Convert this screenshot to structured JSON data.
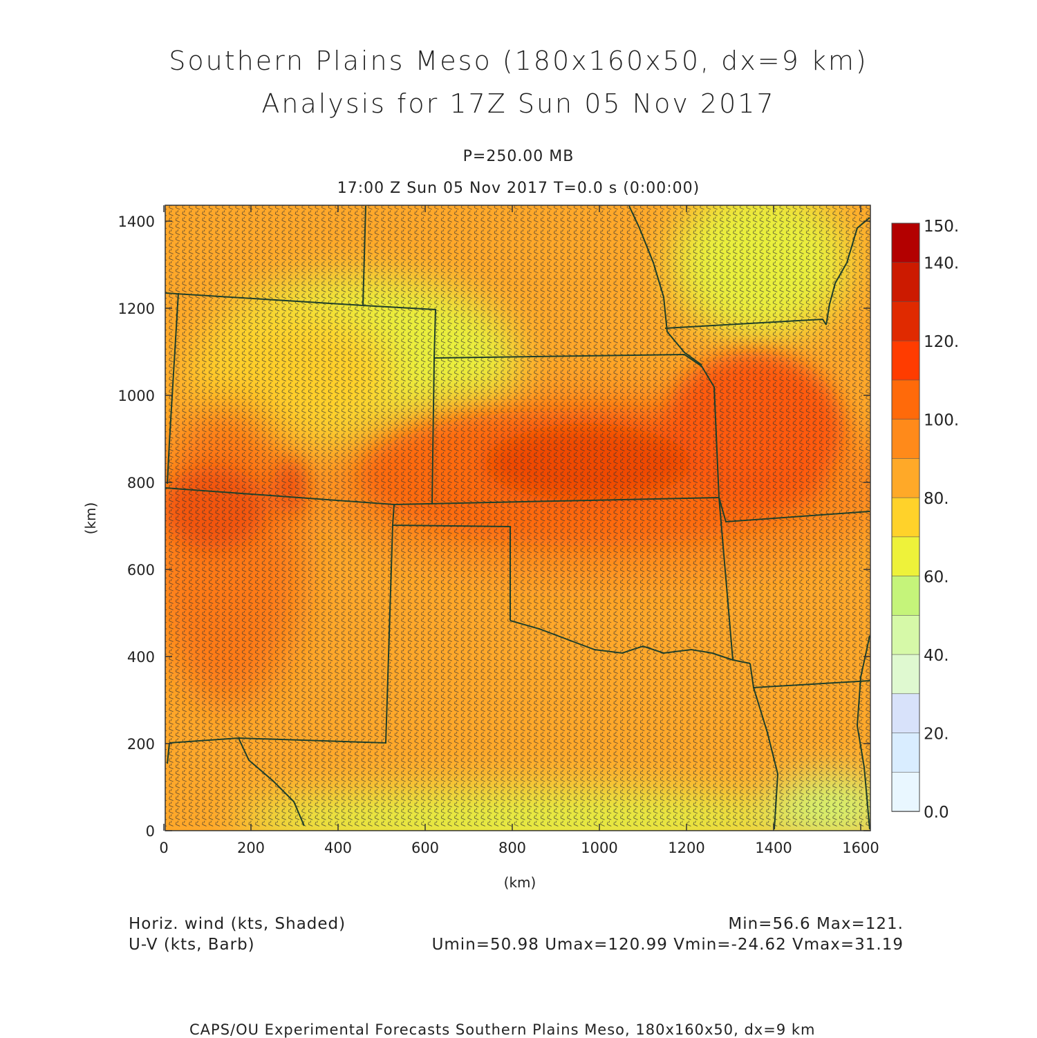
{
  "title_line1": "Southern Plains Meso (180x160x50, dx=9 km)",
  "title_line2": "Analysis for 17Z Sun 05 Nov 2017",
  "pressure_label": "P=250.00 MB",
  "time_label": "17:00 Z Sun 05 Nov 2017    T=0.0 s (0:00:00)",
  "x_axis_label": "(km)",
  "y_axis_label": "(km)",
  "x_ticks": [
    "0",
    "200",
    "400",
    "600",
    "800",
    "1000",
    "1200",
    "1400",
    "1600"
  ],
  "y_ticks": [
    "0",
    "200",
    "400",
    "600",
    "800",
    "1000",
    "1200",
    "1400"
  ],
  "colorbar": {
    "labels": [
      "150.",
      "140.",
      "120.",
      "100.",
      "80.",
      "60.",
      "40.",
      "20.",
      "0.0"
    ],
    "colors_top_to_bottom": [
      "#b30000",
      "#cc1a00",
      "#e02a00",
      "#ff3c00",
      "#ff6a0a",
      "#ff8a1a",
      "#ffa928",
      "#ffd22a",
      "#eef23a",
      "#c5f47a",
      "#d6f9a8",
      "#dff9d0",
      "#d8e2fa",
      "#d9edff",
      "#e9f7ff"
    ]
  },
  "legend": {
    "shaded_field": "Horiz. wind (kts, Shaded)",
    "barb_field": "U-V (kts, Barb)",
    "minmax": "Min=56.6 Max=121.",
    "uv_stats": "Umin=50.98 Umax=120.99 Vmin=-24.62 Vmax=31.19"
  },
  "footer": "CAPS/OU Experimental Forecasts  Southern Plains Meso, 180x160x50, dx=9 km",
  "map_colors": {
    "background_field": "#ffa82a",
    "border": "#1f3f2a",
    "barb": "#333333"
  }
}
